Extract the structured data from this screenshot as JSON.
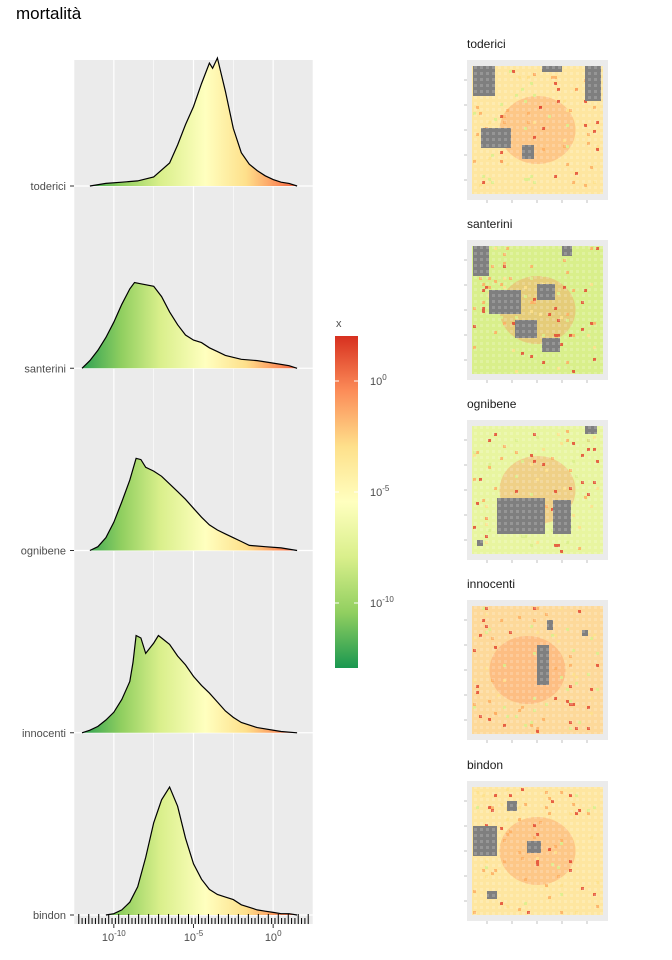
{
  "title": "mortalità",
  "legend": {
    "title": "x",
    "labels": [
      "10^0",
      "10^-5",
      "10^-10"
    ],
    "colors": [
      "#d7301f",
      "#fc8d59",
      "#fee08b",
      "#ffffbf",
      "#d9ef8b",
      "#91cf60",
      "#1a9850"
    ]
  },
  "chart_data": [
    {
      "type": "area",
      "subtype": "ridgeline-density",
      "x_scale": "log10",
      "xlim_log10": [
        -12.5,
        2.5
      ],
      "x_tick_labels": [
        "10^-10",
        "10^-5",
        "10^0"
      ],
      "categories": [
        "toderici",
        "santerini",
        "ognibene",
        "innocenti",
        "bindon"
      ],
      "series": [
        {
          "name": "toderici",
          "points": [
            [
              -11.5,
              0.0
            ],
            [
              -10.5,
              0.02
            ],
            [
              -9.5,
              0.03
            ],
            [
              -8.5,
              0.04
            ],
            [
              -7.5,
              0.07
            ],
            [
              -6.5,
              0.18
            ],
            [
              -6.0,
              0.32
            ],
            [
              -5.5,
              0.48
            ],
            [
              -5.0,
              0.62
            ],
            [
              -4.5,
              0.8
            ],
            [
              -4.0,
              0.96
            ],
            [
              -3.8,
              0.92
            ],
            [
              -3.5,
              1.0
            ],
            [
              -3.0,
              0.74
            ],
            [
              -2.5,
              0.45
            ],
            [
              -2.0,
              0.26
            ],
            [
              -1.5,
              0.17
            ],
            [
              -1.0,
              0.12
            ],
            [
              -0.5,
              0.08
            ],
            [
              0.0,
              0.05
            ],
            [
              0.5,
              0.03
            ],
            [
              1.0,
              0.02
            ],
            [
              1.5,
              0.0
            ]
          ]
        },
        {
          "name": "santerini",
          "points": [
            [
              -12.0,
              0.0
            ],
            [
              -11.5,
              0.06
            ],
            [
              -11.0,
              0.14
            ],
            [
              -10.5,
              0.24
            ],
            [
              -10.0,
              0.36
            ],
            [
              -9.5,
              0.5
            ],
            [
              -9.0,
              0.62
            ],
            [
              -8.7,
              0.67
            ],
            [
              -8.3,
              0.66
            ],
            [
              -7.5,
              0.64
            ],
            [
              -7.0,
              0.56
            ],
            [
              -6.5,
              0.44
            ],
            [
              -6.0,
              0.34
            ],
            [
              -5.5,
              0.26
            ],
            [
              -5.0,
              0.22
            ],
            [
              -4.5,
              0.2
            ],
            [
              -4.0,
              0.16
            ],
            [
              -3.5,
              0.13
            ],
            [
              -3.0,
              0.1
            ],
            [
              -2.0,
              0.07
            ],
            [
              -1.0,
              0.06
            ],
            [
              0.0,
              0.04
            ],
            [
              1.0,
              0.02
            ],
            [
              1.5,
              0.0
            ]
          ]
        },
        {
          "name": "ognibene",
          "points": [
            [
              -11.5,
              0.0
            ],
            [
              -11.0,
              0.03
            ],
            [
              -10.5,
              0.1
            ],
            [
              -10.0,
              0.22
            ],
            [
              -9.5,
              0.38
            ],
            [
              -9.0,
              0.55
            ],
            [
              -8.6,
              0.72
            ],
            [
              -8.3,
              0.71
            ],
            [
              -8.0,
              0.65
            ],
            [
              -7.5,
              0.62
            ],
            [
              -7.0,
              0.58
            ],
            [
              -6.5,
              0.52
            ],
            [
              -6.0,
              0.46
            ],
            [
              -5.5,
              0.4
            ],
            [
              -5.0,
              0.33
            ],
            [
              -4.5,
              0.26
            ],
            [
              -4.0,
              0.2
            ],
            [
              -3.5,
              0.16
            ],
            [
              -3.0,
              0.13
            ],
            [
              -2.5,
              0.1
            ],
            [
              -2.0,
              0.07
            ],
            [
              -1.5,
              0.04
            ],
            [
              -0.5,
              0.03
            ],
            [
              0.5,
              0.02
            ],
            [
              1.5,
              0.0
            ]
          ]
        },
        {
          "name": "innocenti",
          "points": [
            [
              -12.0,
              0.0
            ],
            [
              -11.5,
              0.02
            ],
            [
              -11.0,
              0.05
            ],
            [
              -10.5,
              0.1
            ],
            [
              -10.0,
              0.16
            ],
            [
              -9.5,
              0.26
            ],
            [
              -9.0,
              0.4
            ],
            [
              -8.8,
              0.55
            ],
            [
              -8.6,
              0.76
            ],
            [
              -8.3,
              0.74
            ],
            [
              -8.0,
              0.62
            ],
            [
              -7.5,
              0.7
            ],
            [
              -7.2,
              0.76
            ],
            [
              -7.0,
              0.74
            ],
            [
              -6.5,
              0.69
            ],
            [
              -6.0,
              0.6
            ],
            [
              -5.5,
              0.53
            ],
            [
              -5.0,
              0.44
            ],
            [
              -4.5,
              0.37
            ],
            [
              -4.0,
              0.31
            ],
            [
              -3.5,
              0.24
            ],
            [
              -3.0,
              0.17
            ],
            [
              -2.5,
              0.12
            ],
            [
              -2.0,
              0.08
            ],
            [
              -1.0,
              0.04
            ],
            [
              0.5,
              0.01
            ],
            [
              1.5,
              0.0
            ]
          ]
        },
        {
          "name": "bindon",
          "points": [
            [
              -10.5,
              0.0
            ],
            [
              -10.0,
              0.01
            ],
            [
              -9.5,
              0.04
            ],
            [
              -9.0,
              0.1
            ],
            [
              -8.5,
              0.22
            ],
            [
              -8.0,
              0.45
            ],
            [
              -7.5,
              0.72
            ],
            [
              -7.0,
              0.9
            ],
            [
              -6.5,
              1.0
            ],
            [
              -6.0,
              0.85
            ],
            [
              -5.5,
              0.6
            ],
            [
              -5.0,
              0.4
            ],
            [
              -4.5,
              0.28
            ],
            [
              -4.0,
              0.2
            ],
            [
              -3.5,
              0.16
            ],
            [
              -3.0,
              0.14
            ],
            [
              -2.5,
              0.12
            ],
            [
              -2.0,
              0.08
            ],
            [
              -1.5,
              0.06
            ],
            [
              -1.0,
              0.04
            ],
            [
              -0.5,
              0.03
            ],
            [
              0.0,
              0.02
            ],
            [
              0.5,
              0.01
            ],
            [
              1.0,
              0.01
            ],
            [
              1.5,
              0.0
            ]
          ]
        }
      ]
    },
    {
      "type": "heatmap",
      "panels": [
        "toderici",
        "santerini",
        "ognibene",
        "innocenti",
        "bindon"
      ],
      "missing_color": "#7f7f7f",
      "dominant_tone": [
        "#fee6a0",
        "#d9ef8b",
        "#e8f5a0",
        "#fdd99a",
        "#fee6a0"
      ]
    }
  ]
}
